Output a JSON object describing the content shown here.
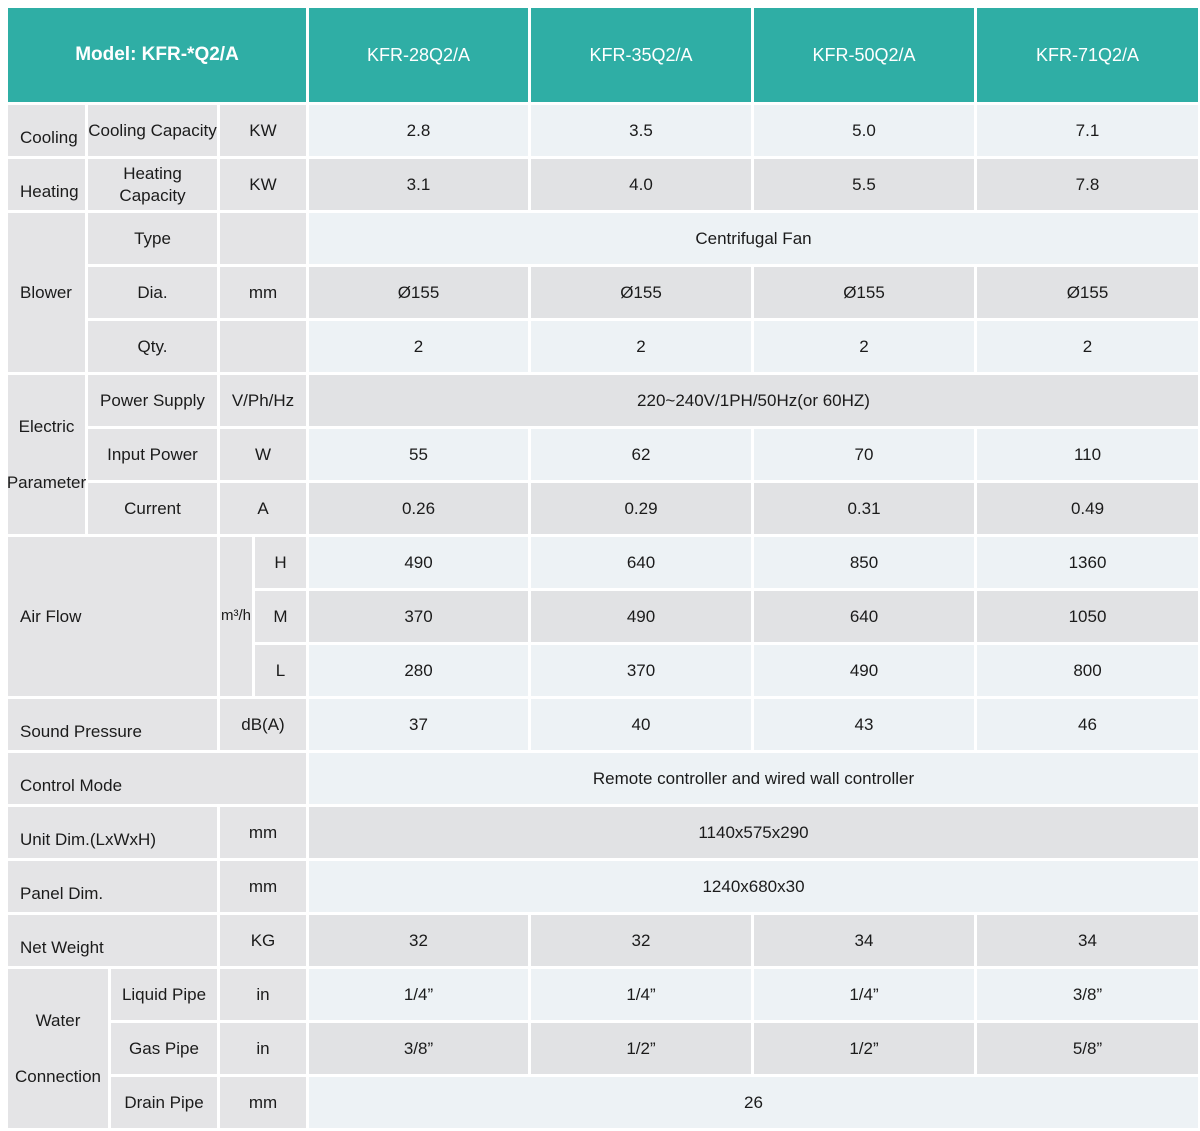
{
  "colors": {
    "teal": "#2FAEA5",
    "label_gray": "#E4E4E6",
    "row_gray": "#E1E2E4",
    "row_light": "#EDF2F5"
  },
  "header": {
    "model_label": "Model: KFR-*Q2/A",
    "columns": [
      "KFR-28Q2/A",
      "KFR-35Q2/A",
      "KFR-50Q2/A",
      "KFR-71Q2/A"
    ]
  },
  "sections": {
    "cooling": {
      "group": "Cooling",
      "param": "Cooling Capacity",
      "unit": "KW",
      "values": [
        "2.8",
        "3.5",
        "5.0",
        "7.1"
      ]
    },
    "heating": {
      "group": "Heating",
      "param": "Heating Capacity",
      "unit": "KW",
      "values": [
        "3.1",
        "4.0",
        "5.5",
        "7.8"
      ]
    },
    "blower": {
      "group": "Blower",
      "type": {
        "param": "Type",
        "value": "Centrifugal Fan"
      },
      "dia": {
        "param": "Dia.",
        "unit": "mm",
        "values": [
          "Ø155",
          "Ø155",
          "Ø155",
          "Ø155"
        ]
      },
      "qty": {
        "param": "Qty.",
        "values": [
          "2",
          "2",
          "2",
          "2"
        ]
      }
    },
    "electric": {
      "group_line1": "Electric",
      "group_line2": "Parameter",
      "power_supply": {
        "param": "Power Supply",
        "unit": "V/Ph/Hz",
        "value": "220~240V/1PH/50Hz(or 60HZ)"
      },
      "input_power": {
        "param": "Input Power",
        "unit": "W",
        "values": [
          "55",
          "62",
          "70",
          "110"
        ]
      },
      "current": {
        "param": "Current",
        "unit": "A",
        "values": [
          "0.26",
          "0.29",
          "0.31",
          "0.49"
        ]
      }
    },
    "air_flow": {
      "group": "Air Flow",
      "unit": "m³/h",
      "h": {
        "param": "H",
        "values": [
          "490",
          "640",
          "850",
          "1360"
        ]
      },
      "m": {
        "param": "M",
        "values": [
          "370",
          "490",
          "640",
          "1050"
        ]
      },
      "l": {
        "param": "L",
        "values": [
          "280",
          "370",
          "490",
          "800"
        ]
      }
    },
    "sound_pressure": {
      "label": "Sound Pressure",
      "unit": "dB(A)",
      "values": [
        "37",
        "40",
        "43",
        "46"
      ]
    },
    "control_mode": {
      "label": "Control Mode",
      "value": "Remote controller and wired wall controller"
    },
    "unit_dim": {
      "label": "Unit Dim.(LxWxH)",
      "unit": "mm",
      "value": "1140x575x290"
    },
    "panel_dim": {
      "label": "Panel Dim.",
      "unit": "mm",
      "value": "1240x680x30"
    },
    "net_weight": {
      "label": "Net Weight",
      "unit": "KG",
      "values": [
        "32",
        "32",
        "34",
        "34"
      ]
    },
    "water": {
      "group_line1": "Water",
      "group_line2": "Connection",
      "liquid": {
        "param": "Liquid Pipe",
        "unit": "in",
        "values": [
          "1/4”",
          "1/4”",
          "1/4”",
          "3/8”"
        ]
      },
      "gas": {
        "param": "Gas Pipe",
        "unit": "in",
        "values": [
          "3/8”",
          "1/2”",
          "1/2”",
          "5/8”"
        ]
      },
      "drain": {
        "param": "Drain Pipe",
        "unit": "mm",
        "value": "26"
      }
    }
  }
}
